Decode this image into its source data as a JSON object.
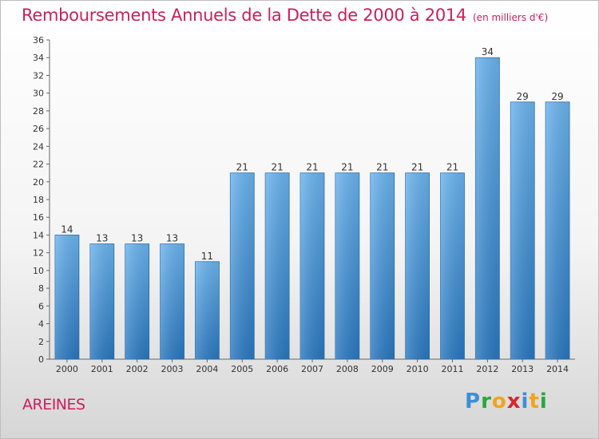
{
  "title": "Remboursements Annuels de la Dette de 2000 à 2014",
  "unit": "(en milliers d'€)",
  "commune": "AREINES",
  "logo": {
    "p": "P",
    "r": "r",
    "o": "o",
    "x": "x",
    "i1": "i",
    "t": "t",
    "i2": "i"
  },
  "chart_data": {
    "type": "bar",
    "title": "Remboursements Annuels de la Dette de 2000 à 2014",
    "subtitle": "(en milliers d'€)",
    "xlabel": "",
    "ylabel": "",
    "categories": [
      "2000",
      "2001",
      "2002",
      "2003",
      "2004",
      "2005",
      "2006",
      "2007",
      "2008",
      "2009",
      "2010",
      "2011",
      "2012",
      "2013",
      "2014"
    ],
    "values": [
      14,
      13,
      13,
      13,
      11,
      21,
      21,
      21,
      21,
      21,
      21,
      21,
      34,
      29,
      29
    ],
    "ylim": [
      0,
      36
    ],
    "yticks": [
      0,
      2,
      4,
      6,
      8,
      10,
      12,
      14,
      16,
      18,
      20,
      22,
      24,
      26,
      28,
      30,
      32,
      34,
      36
    ],
    "grid": false,
    "bar_color": "#3d8fd6"
  }
}
